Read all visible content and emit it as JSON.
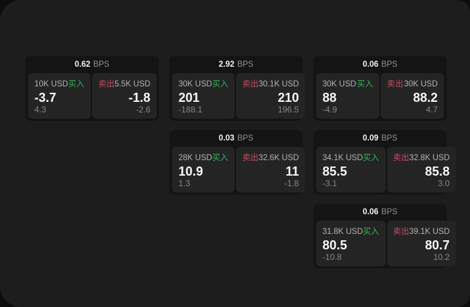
{
  "labels": {
    "bps_unit": "BPS",
    "buy": "买入",
    "sell": "卖出"
  },
  "colors": {
    "buy_green": "#33b45e",
    "sell_red": "#c44f63",
    "window_bg": "#1d1d1d",
    "card_bg": "#141414",
    "panel_bg": "#242424"
  },
  "cards": [
    {
      "bps": "0.62",
      "buy": {
        "amount": "10K USD",
        "value": "-3.7",
        "sub": "4.3"
      },
      "sell": {
        "amount": "5.5K USD",
        "value": "-1.8",
        "sub": "-2.6"
      }
    },
    {
      "bps": "2.92",
      "buy": {
        "amount": "30K USD",
        "value": "201",
        "sub": "-188.1"
      },
      "sell": {
        "amount": "30.1K USD",
        "value": "210",
        "sub": "196.5"
      }
    },
    {
      "bps": "0.06",
      "buy": {
        "amount": "30K USD",
        "value": "88",
        "sub": "-4.9"
      },
      "sell": {
        "amount": "30K USD",
        "value": "88.2",
        "sub": "4.7"
      }
    },
    {
      "bps": "0.03",
      "buy": {
        "amount": "28K USD",
        "value": "10.9",
        "sub": "1.3"
      },
      "sell": {
        "amount": "32.6K USD",
        "value": "11",
        "sub": "-1.8"
      }
    },
    {
      "bps": "0.09",
      "buy": {
        "amount": "34.1K USD",
        "value": "85.5",
        "sub": "-3.1"
      },
      "sell": {
        "amount": "32.8K USD",
        "value": "85.8",
        "sub": "3.0"
      }
    },
    {
      "bps": "0.06",
      "buy": {
        "amount": "31.8K USD",
        "value": "80.5",
        "sub": "-10.8"
      },
      "sell": {
        "amount": "39.1K USD",
        "value": "80.7",
        "sub": "10.2"
      }
    }
  ]
}
